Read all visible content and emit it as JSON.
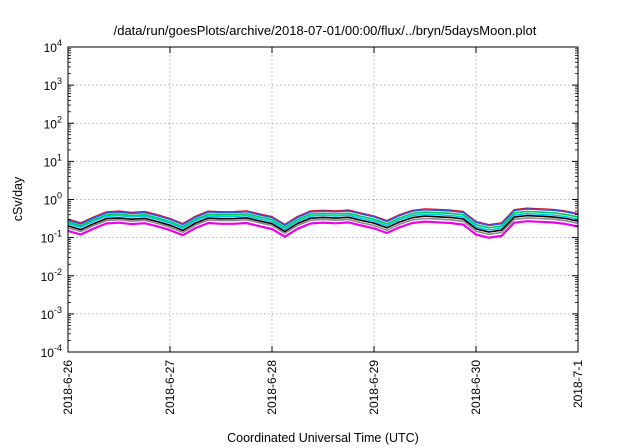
{
  "chart_data": {
    "type": "line",
    "title": "/data/run/goesPlots/archive/2018-07-01/00:00/flux/../bryn/5daysMoon.plot",
    "xlabel": "Coordinated Universal Time (UTC)",
    "ylabel": "cSv/day",
    "yscale": "log",
    "ylim": [
      0.0001,
      10000
    ],
    "y_ticks": [
      {
        "mantissa": "10",
        "exp": "-4"
      },
      {
        "mantissa": "10",
        "exp": "-3"
      },
      {
        "mantissa": "10",
        "exp": "-2"
      },
      {
        "mantissa": "10",
        "exp": "-1"
      },
      {
        "mantissa": "10",
        "exp": "0"
      },
      {
        "mantissa": "10",
        "exp": "1"
      },
      {
        "mantissa": "10",
        "exp": "2"
      },
      {
        "mantissa": "10",
        "exp": "3"
      },
      {
        "mantissa": "10",
        "exp": "4"
      }
    ],
    "xlim": [
      "2018-06-26",
      "2018-07-01"
    ],
    "x_ticks": [
      "2018-6-26",
      "2018-6-27",
      "2018-6-28",
      "2018-6-29",
      "2018-6-30",
      "2018-7-1"
    ],
    "grid": true,
    "series_profile": {
      "x": [
        "2018-06-26 00:00",
        "2018-06-26 03:00",
        "2018-06-26 06:00",
        "2018-06-26 09:00",
        "2018-06-26 12:00",
        "2018-06-26 15:00",
        "2018-06-26 18:00",
        "2018-06-26 21:00",
        "2018-06-27 00:00",
        "2018-06-27 03:00",
        "2018-06-27 06:00",
        "2018-06-27 09:00",
        "2018-06-27 12:00",
        "2018-06-27 15:00",
        "2018-06-27 18:00",
        "2018-06-27 21:00",
        "2018-06-28 00:00",
        "2018-06-28 03:00",
        "2018-06-28 06:00",
        "2018-06-28 09:00",
        "2018-06-28 12:00",
        "2018-06-28 15:00",
        "2018-06-28 18:00",
        "2018-06-28 21:00",
        "2018-06-29 00:00",
        "2018-06-29 03:00",
        "2018-06-29 06:00",
        "2018-06-29 09:00",
        "2018-06-29 12:00",
        "2018-06-29 15:00",
        "2018-06-29 18:00",
        "2018-06-29 21:00",
        "2018-06-30 00:00",
        "2018-06-30 03:00",
        "2018-06-30 06:00",
        "2018-06-30 09:00",
        "2018-06-30 12:00",
        "2018-06-30 15:00",
        "2018-06-30 18:00",
        "2018-06-30 21:00",
        "2018-07-01 00:00"
      ],
      "factor": [
        0.75,
        0.6,
        0.85,
        1.15,
        1.2,
        1.1,
        1.15,
        0.95,
        0.75,
        0.55,
        0.85,
        1.15,
        1.1,
        1.1,
        1.15,
        0.95,
        0.8,
        0.5,
        0.8,
        1.1,
        1.15,
        1.1,
        1.15,
        0.95,
        0.8,
        0.6,
        0.85,
        1.1,
        1.2,
        1.15,
        1.1,
        1.0,
        0.55,
        0.45,
        0.5,
        1.1,
        1.2,
        1.15,
        1.1,
        1.0,
        0.85
      ]
    },
    "series": [
      {
        "color": "#ee0000",
        "values": [
          0.4,
          0.42,
          0.44,
          0.46,
          0.48,
          0.5
        ]
      },
      {
        "color": "#3355ee",
        "values": [
          0.38,
          0.4,
          0.42,
          0.44,
          0.46,
          0.48
        ]
      },
      {
        "color": "#00cc55",
        "values": [
          0.34,
          0.35,
          0.37,
          0.38,
          0.4,
          0.41
        ]
      },
      {
        "color": "#00c8ee",
        "values": [
          0.31,
          0.32,
          0.33,
          0.34,
          0.35,
          0.36
        ]
      },
      {
        "color": "#000000",
        "values": [
          0.27,
          0.28,
          0.29,
          0.3,
          0.31,
          0.32
        ]
      },
      {
        "color": "#888888",
        "values": [
          0.24,
          0.25,
          0.26,
          0.26,
          0.27,
          0.28
        ]
      },
      {
        "color": "#ee00ee",
        "values": [
          0.2,
          0.21,
          0.21,
          0.22,
          0.22,
          0.23
        ]
      }
    ]
  }
}
